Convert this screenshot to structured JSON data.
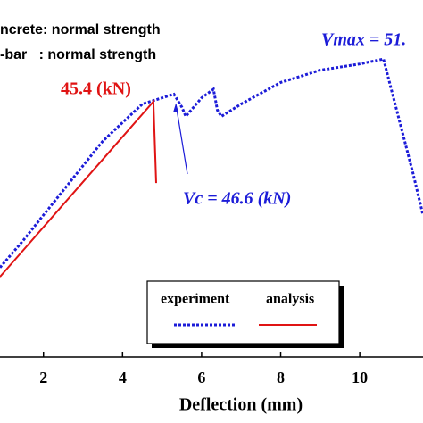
{
  "chart_data": {
    "type": "line",
    "xlabel": "Deflection (mm)",
    "annotations": [
      "ncrete: normal strength",
      "-bar   : normal strength",
      "Vmax = 51.",
      "45.4 (kN)",
      "Vc = 46.6 (kN)"
    ],
    "xlim": [
      0.9,
      11.6
    ],
    "xticks": [
      2,
      4,
      6,
      8,
      10
    ],
    "ylim": [
      4,
      61
    ],
    "series": [
      {
        "name": "experiment",
        "color": "#1c1cd8",
        "x": [
          0.9,
          1.5,
          2,
          2.5,
          3,
          3.5,
          4,
          4.5,
          5,
          5.3,
          5.5,
          5.6,
          6.0,
          6.3,
          6.4,
          6.5,
          7,
          8,
          9,
          10,
          10.6,
          11.35,
          11.6
        ],
        "values": [
          18.5,
          23,
          27,
          31,
          35,
          39,
          42,
          45,
          46,
          46.6,
          44.5,
          43,
          46,
          47.4,
          44,
          43,
          45,
          48.5,
          50.5,
          51.5,
          52.3,
          33.7,
          27
        ]
      },
      {
        "name": "analysis",
        "color": "#e01414",
        "x": [
          0.9,
          4.78,
          4.85
        ],
        "values": [
          17,
          45.4,
          32.2
        ]
      }
    ]
  }
}
